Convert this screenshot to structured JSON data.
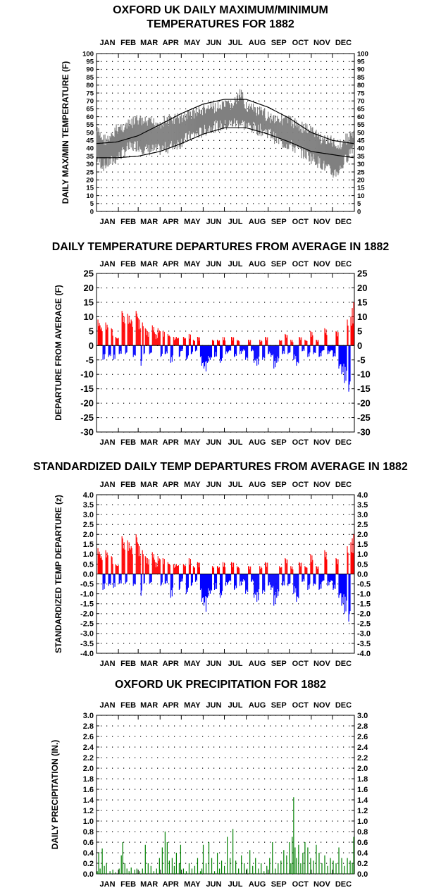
{
  "months": [
    "JAN",
    "FEB",
    "MAR",
    "APR",
    "MAY",
    "JUN",
    "JUL",
    "AUG",
    "SEP",
    "OCT",
    "NOV",
    "DEC"
  ],
  "colors": {
    "observed": "#808080",
    "normal": "#000000",
    "positive": "#ff0000",
    "negative": "#0000ff",
    "precip": "#008000",
    "grid": "#000000"
  },
  "chart_data": [
    {
      "type": "line",
      "title_lines": [
        "OXFORD UK DAILY MAXIMUM/MINIMUM",
        "TEMPERATURES FOR 1882"
      ],
      "ylabel": "DAILY MAX/MIN TEMPERATURE (F)",
      "ylim": [
        0,
        100
      ],
      "yticks": [
        0,
        5,
        10,
        15,
        20,
        25,
        30,
        35,
        40,
        45,
        50,
        55,
        60,
        65,
        70,
        75,
        80,
        85,
        90,
        95,
        100
      ],
      "grid": true,
      "normal_max": {
        "day": [
          1,
          30,
          60,
          91,
          121,
          152,
          182,
          213,
          244,
          274,
          305,
          335,
          365
        ],
        "value": [
          43,
          44,
          48,
          55,
          62,
          68,
          71,
          71,
          66,
          59,
          50,
          45,
          43
        ]
      },
      "normal_min": {
        "day": [
          1,
          30,
          60,
          91,
          121,
          152,
          182,
          213,
          244,
          274,
          305,
          335,
          365
        ],
        "value": [
          34,
          34,
          35,
          38,
          43,
          49,
          53,
          53,
          49,
          44,
          38,
          36,
          34
        ]
      },
      "observed_max_envelope": {
        "day": [
          1,
          10,
          20,
          31,
          45,
          59,
          70,
          90,
          105,
          120,
          135,
          150,
          165,
          180,
          195,
          205,
          215,
          230,
          245,
          260,
          275,
          290,
          305,
          320,
          335,
          345,
          355,
          365
        ],
        "value": [
          55,
          50,
          49,
          57,
          58,
          62,
          60,
          60,
          62,
          63,
          66,
          68,
          70,
          70,
          72,
          78,
          70,
          67,
          64,
          63,
          61,
          58,
          55,
          50,
          48,
          46,
          50,
          53
        ]
      },
      "observed_min_envelope": {
        "day": [
          1,
          10,
          20,
          31,
          45,
          59,
          70,
          90,
          105,
          120,
          135,
          150,
          165,
          180,
          195,
          205,
          215,
          230,
          245,
          260,
          275,
          290,
          305,
          320,
          335,
          345,
          355,
          365
        ],
        "value": [
          30,
          25,
          27,
          30,
          36,
          38,
          35,
          35,
          37,
          40,
          44,
          46,
          50,
          50,
          52,
          52,
          50,
          48,
          46,
          40,
          38,
          34,
          30,
          26,
          20,
          22,
          30,
          38
        ]
      }
    },
    {
      "type": "bar",
      "title": "DAILY TEMPERATURE DEPARTURES FROM AVERAGE IN 1882",
      "ylabel": "DEPARTURE FROM AVERAGE (F)",
      "ylim": [
        -30,
        25
      ],
      "yticks": [
        -30,
        -25,
        -20,
        -15,
        -10,
        -5,
        0,
        5,
        10,
        15,
        20,
        25
      ],
      "grid": true,
      "series": [
        {
          "day": [
            3,
            6,
            10,
            14,
            18,
            22,
            25,
            28,
            33,
            37,
            40,
            42,
            45,
            48,
            50,
            53,
            57,
            59,
            62,
            64,
            66,
            68,
            70,
            73,
            76,
            80,
            84,
            88,
            92,
            95,
            98,
            102,
            106,
            110,
            114,
            118,
            120,
            124,
            128,
            132,
            135,
            138,
            141,
            144,
            148,
            150,
            153,
            156,
            158,
            162,
            165,
            168,
            172,
            176,
            180,
            184,
            188,
            192,
            196,
            200,
            204,
            208,
            212,
            216,
            220,
            224,
            228,
            232,
            236,
            240,
            244,
            248,
            252,
            256,
            260,
            264,
            268,
            272,
            276,
            280,
            284,
            288,
            292,
            296,
            300,
            304,
            308,
            312,
            316,
            320,
            324,
            328,
            332,
            336,
            340,
            344,
            348,
            352,
            356,
            358,
            361,
            363,
            365
          ],
          "value": [
            9,
            7,
            -5,
            8,
            -4,
            6,
            -5,
            3,
            -3,
            12,
            10,
            -3,
            11,
            8,
            9,
            -4,
            12,
            10,
            9,
            -7,
            8,
            -3,
            6,
            5,
            -3,
            7,
            4,
            6,
            -4,
            5,
            -3,
            4,
            -6,
            3,
            3,
            -4,
            -2,
            3,
            -5,
            4,
            -3,
            2,
            -2,
            3,
            -4,
            -7,
            -8,
            -9,
            -6,
            -5,
            2,
            -4,
            2,
            -6,
            3,
            -3,
            -2,
            3,
            -4,
            2,
            -3,
            -2,
            -5,
            2,
            -2,
            -6,
            -7,
            2,
            -5,
            3,
            -3,
            -4,
            -8,
            -6,
            2,
            -3,
            4,
            -3,
            2,
            -5,
            -7,
            3,
            -2,
            2,
            -4,
            5,
            -3,
            2,
            -4,
            -2,
            6,
            -3,
            -2,
            -4,
            5,
            -8,
            -10,
            -13,
            9,
            -16,
            10,
            13,
            15
          ]
        }
      ]
    },
    {
      "type": "bar",
      "title": "STANDARDIZED DAILY TEMP DEPARTURES FROM AVERAGE IN 1882",
      "ylabel": "STANDARDIZED TEMP DEPARTURE (z)",
      "ylim": [
        -4.0,
        4.0
      ],
      "yticks": [
        "-4.0",
        "-3.5",
        "-3.0",
        "-2.5",
        "-2.0",
        "-1.5",
        "-1.0",
        "-0.5",
        "0.0",
        "0.5",
        "1.0",
        "1.5",
        "2.0",
        "2.5",
        "3.0",
        "3.5",
        "4.0"
      ],
      "grid": true,
      "series": [
        {
          "day": [
            3,
            6,
            10,
            14,
            18,
            22,
            25,
            28,
            33,
            37,
            40,
            42,
            45,
            48,
            50,
            53,
            57,
            59,
            62,
            64,
            66,
            68,
            70,
            73,
            76,
            80,
            84,
            88,
            92,
            95,
            98,
            102,
            106,
            110,
            114,
            118,
            120,
            124,
            128,
            132,
            135,
            138,
            141,
            144,
            148,
            150,
            153,
            156,
            158,
            162,
            165,
            168,
            172,
            176,
            180,
            184,
            188,
            192,
            196,
            200,
            204,
            208,
            212,
            216,
            220,
            224,
            228,
            232,
            236,
            240,
            244,
            248,
            252,
            256,
            260,
            264,
            268,
            272,
            276,
            280,
            284,
            288,
            292,
            296,
            300,
            304,
            308,
            312,
            316,
            320,
            324,
            328,
            332,
            336,
            340,
            344,
            348,
            352,
            356,
            358,
            361,
            363,
            365
          ],
          "value": [
            1.3,
            1.0,
            -0.8,
            1.2,
            -0.6,
            0.9,
            -0.7,
            0.5,
            -0.5,
            1.9,
            1.6,
            -0.5,
            1.7,
            1.3,
            1.4,
            -0.6,
            2.0,
            1.6,
            1.4,
            -1.1,
            1.2,
            -0.5,
            0.9,
            0.8,
            -0.5,
            1.1,
            0.6,
            0.9,
            -0.6,
            0.8,
            -0.5,
            0.6,
            -1.2,
            0.5,
            0.5,
            -0.8,
            -0.4,
            0.5,
            -1.0,
            0.8,
            -0.6,
            0.4,
            -0.4,
            0.6,
            -0.8,
            -1.4,
            -1.6,
            -1.9,
            -1.2,
            -1.0,
            0.4,
            -0.8,
            0.4,
            -1.2,
            0.6,
            -0.6,
            -0.4,
            0.6,
            -0.8,
            0.4,
            -0.6,
            -0.4,
            -1.0,
            0.4,
            -0.4,
            -1.2,
            -1.4,
            0.4,
            -1.0,
            0.6,
            -0.6,
            -0.8,
            -1.6,
            -1.2,
            0.4,
            -0.6,
            0.8,
            -0.6,
            0.4,
            -1.0,
            -1.4,
            0.6,
            -0.4,
            0.4,
            -0.8,
            1.0,
            -0.6,
            0.4,
            -0.8,
            -0.4,
            1.2,
            -0.6,
            -0.4,
            -0.8,
            0.8,
            -1.2,
            -1.6,
            -2.0,
            1.4,
            -2.4,
            1.6,
            1.8,
            2.0
          ]
        }
      ]
    },
    {
      "type": "bar",
      "title": "OXFORD UK PRECIPITATION FOR 1882",
      "ylabel": "DAILY PRECIPITATION (IN.)",
      "ylim": [
        0.0,
        3.0
      ],
      "yticks": [
        "0.0",
        "0.2",
        "0.4",
        "0.6",
        "0.8",
        "1.0",
        "1.2",
        "1.4",
        "1.6",
        "1.8",
        "2.0",
        "2.2",
        "2.4",
        "2.6",
        "2.8",
        "3.0"
      ],
      "grid": true,
      "series": [
        {
          "day": [
            2,
            4,
            6,
            9,
            12,
            15,
            20,
            24,
            28,
            33,
            36,
            38,
            41,
            44,
            47,
            50,
            55,
            58,
            62,
            66,
            70,
            74,
            78,
            82,
            86,
            90,
            94,
            98,
            101,
            104,
            108,
            111,
            114,
            118,
            120,
            124,
            128,
            132,
            136,
            140,
            144,
            148,
            150,
            152,
            156,
            160,
            164,
            168,
            172,
            175,
            178,
            182,
            186,
            190,
            194,
            198,
            202,
            206,
            210,
            214,
            218,
            222,
            226,
            230,
            234,
            238,
            242,
            246,
            250,
            254,
            258,
            262,
            266,
            270,
            274,
            276,
            278,
            280,
            282,
            284,
            287,
            290,
            293,
            296,
            300,
            304,
            308,
            312,
            316,
            320,
            324,
            328,
            332,
            336,
            340,
            344,
            348,
            352,
            356,
            360,
            363,
            365
          ],
          "value": [
            0.05,
            0.4,
            0.1,
            0.48,
            0.15,
            0.2,
            0.05,
            0.08,
            0.03,
            0.1,
            0.35,
            0.6,
            0.2,
            0.1,
            0.05,
            0.12,
            0.08,
            0.1,
            0.05,
            0.1,
            0.55,
            0.2,
            0.15,
            0.05,
            0.1,
            0.3,
            0.5,
            0.8,
            0.6,
            0.25,
            0.3,
            0.15,
            0.4,
            0.2,
            0.55,
            0.1,
            0.05,
            0.2,
            0.1,
            0.15,
            0.3,
            0.05,
            0.1,
            0.55,
            0.2,
            0.6,
            0.3,
            0.05,
            0.4,
            0.1,
            0.25,
            0.15,
            0.7,
            0.3,
            0.85,
            0.25,
            0.1,
            0.35,
            0.2,
            0.1,
            0.45,
            0.15,
            0.3,
            0.1,
            0.2,
            0.05,
            0.15,
            0.3,
            0.6,
            0.1,
            0.2,
            0.25,
            0.45,
            0.35,
            0.6,
            0.2,
            0.7,
            1.45,
            0.5,
            0.3,
            0.55,
            0.2,
            0.4,
            0.6,
            0.5,
            0.3,
            0.25,
            0.55,
            0.4,
            0.2,
            0.35,
            0.15,
            0.3,
            0.25,
            0.2,
            0.5,
            0.3,
            0.15,
            0.3,
            0.25,
            0.2,
            0.7
          ]
        }
      ]
    }
  ]
}
